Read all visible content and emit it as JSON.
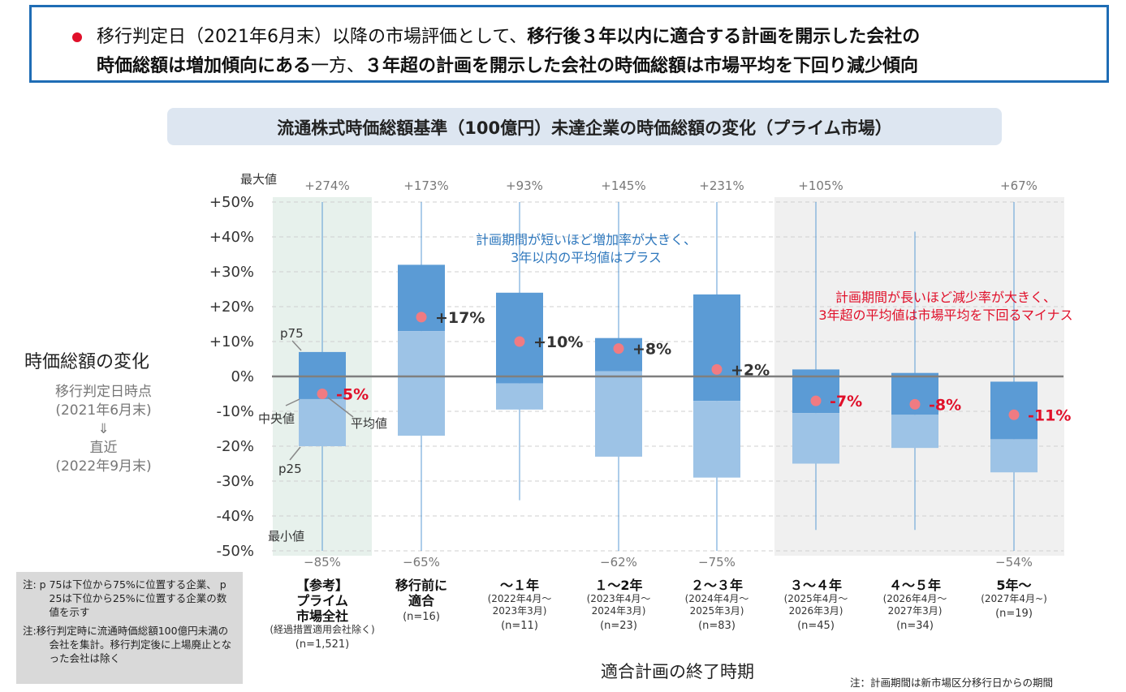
{
  "headline": {
    "line1_normal": "移行判定日（2021年6月末）以降の市場評価として、",
    "line1_bold": "移行後３年以内に適合する計画を開示した会社の",
    "line2_bold1": "時価総額は増加傾向にある",
    "line2_normal": "一方、",
    "line2_bold2": "３年超の計画を開示した会社の時価総額は市場平均を下回り減少傾向"
  },
  "colors": {
    "accent": "#e0102a",
    "box_upper": "#5b9bd5",
    "box_lower": "#9dc3e6",
    "frame": "#1f6db5"
  },
  "y_axis": {
    "title": "時価総額の変化",
    "sub1": "移行判定日時点",
    "sub2": "(2021年6月末)",
    "arrow": "⇓",
    "sub3": "直近",
    "sub4": "(2022年9月末)"
  },
  "guides": {
    "max": "最大値",
    "min": "最小値",
    "p75": "p75",
    "p25": "p25",
    "median": "中央値",
    "mean": "平均値"
  },
  "annotations": {
    "blue_line1": "計画期間が短いほど増加率が大きく、",
    "blue_line2": "3年以内の平均値はプラス",
    "red_line1": "計画期間が長いほど減少率が大きく、",
    "red_line2": "3年超の平均値は市場平均を下回るマイナス"
  },
  "categories": [
    {
      "main1": "【参考】",
      "main2": "プライム",
      "main3": "市場全社",
      "sub1": "(経過措置適用会社除く)",
      "sub2": "",
      "n": "(n=1,521)"
    },
    {
      "main1": "移行前に",
      "main2": "適合",
      "main3": "",
      "sub1": "",
      "sub2": "",
      "n": "(n=16)"
    },
    {
      "main1": "～１年",
      "main2": "",
      "main3": "",
      "sub1": "(2022年4月～",
      "sub2": "2023年3月)",
      "n": "(n=11)"
    },
    {
      "main1": "１～2年",
      "main2": "",
      "main3": "",
      "sub1": "(2023年4月～",
      "sub2": "2024年3月)",
      "n": "(n=23)"
    },
    {
      "main1": "２～３年",
      "main2": "",
      "main3": "",
      "sub1": "(2024年4月～",
      "sub2": "2025年3月)",
      "n": "(n=83)"
    },
    {
      "main1": "３～４年",
      "main2": "",
      "main3": "",
      "sub1": "(2025年4月～",
      "sub2": "2026年3月)",
      "n": "(n=45)"
    },
    {
      "main1": "４～５年",
      "main2": "",
      "main3": "",
      "sub1": "(2026年4月～",
      "sub2": "2027年3月)",
      "n": "(n=34)"
    },
    {
      "main1": "5年～",
      "main2": "",
      "main3": "",
      "sub1": "(2027年4月~)",
      "sub2": "",
      "n": "(n=19)"
    }
  ],
  "notes": {
    "note1": "注: p 75は下位から75%に位置する企業、 p 25は下位から25%に位置する企業の数値を示す",
    "note2": "注:移行判定時に流通時価総額100億円未満の会社を集計。移行判定後に上場廃止となった会社は除く"
  },
  "xlabel": "適合計画の終了時期",
  "footnote": "注：計画期間は新市場区分移行日からの期間",
  "chart_data": {
    "type": "box",
    "title": "流通株式時価総額基準（100億円）未達企業の時価総額の変化（プライム市場）",
    "ylim": [
      -50,
      50
    ],
    "yticks": [
      50,
      40,
      30,
      20,
      10,
      0,
      -10,
      -20,
      -30,
      -40,
      -50
    ],
    "ytick_labels": [
      "+50%",
      "+40%",
      "+30%",
      "+20%",
      "+10%",
      "0%",
      "-10%",
      "-20%",
      "-30%",
      "-40%",
      "-50%"
    ],
    "max_labels": [
      "+274%",
      "+173%",
      "+93%",
      "+145%",
      "+231%",
      "+105%",
      "",
      "+67%"
    ],
    "min_labels": [
      "−85%",
      "−65%",
      "",
      "−62%",
      "−75%",
      "",
      "",
      "−54%"
    ],
    "boxes": [
      {
        "p75": 7,
        "median": -6.5,
        "p25": -20,
        "mean": -5,
        "mean_label": "-5%",
        "whisker_min": -50,
        "whisker_max": 50
      },
      {
        "p75": 32,
        "median": 13,
        "p25": -17,
        "mean": 17,
        "mean_label": "+17%",
        "whisker_min": -50,
        "whisker_max": 50
      },
      {
        "p75": 24,
        "median": -2,
        "p25": -9.5,
        "mean": 10,
        "mean_label": "+10%",
        "whisker_min": -35.5,
        "whisker_max": 50
      },
      {
        "p75": 11,
        "median": 1.5,
        "p25": -23,
        "mean": 8,
        "mean_label": "+8%",
        "whisker_min": -50,
        "whisker_max": 50
      },
      {
        "p75": 23.5,
        "median": -7,
        "p25": -29,
        "mean": 2,
        "mean_label": "+2%",
        "whisker_min": -50,
        "whisker_max": 50
      },
      {
        "p75": 2,
        "median": -10.5,
        "p25": -25,
        "mean": -7,
        "mean_label": "-7%",
        "whisker_min": -44,
        "whisker_max": 50
      },
      {
        "p75": 1,
        "median": -11,
        "p25": -20.5,
        "mean": -8,
        "mean_label": "-8%",
        "whisker_min": -44,
        "whisker_max": 41.5
      },
      {
        "p75": -1.5,
        "median": -18,
        "p25": -27.5,
        "mean": -11,
        "mean_label": "-11%",
        "whisker_min": -50,
        "whisker_max": 50
      }
    ]
  }
}
